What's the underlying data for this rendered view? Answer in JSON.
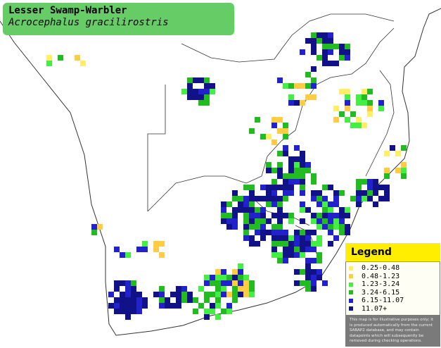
{
  "title": {
    "common_name": "Lesser Swamp-Warbler",
    "scientific_name": "Acrocephalus gracilirostris"
  },
  "legend": {
    "heading": "Legend",
    "items": [
      {
        "label": "0.25-0.48",
        "color": "#ffee66"
      },
      {
        "label": "0.48-1.23",
        "color": "#ffcc44"
      },
      {
        "label": "1.23-3.24",
        "color": "#44ee44"
      },
      {
        "label": "3.24-6.15",
        "color": "#22bb22"
      },
      {
        "label": "6.15-11.07",
        "color": "#2222cc"
      },
      {
        "label": "11.07+",
        "color": "#111188"
      }
    ],
    "note": "This map is for illustrative purposes only; it is produced automatically from the current SABAP2 database, and may contain datapoints which will subsequently be removed during checking operations."
  }
}
